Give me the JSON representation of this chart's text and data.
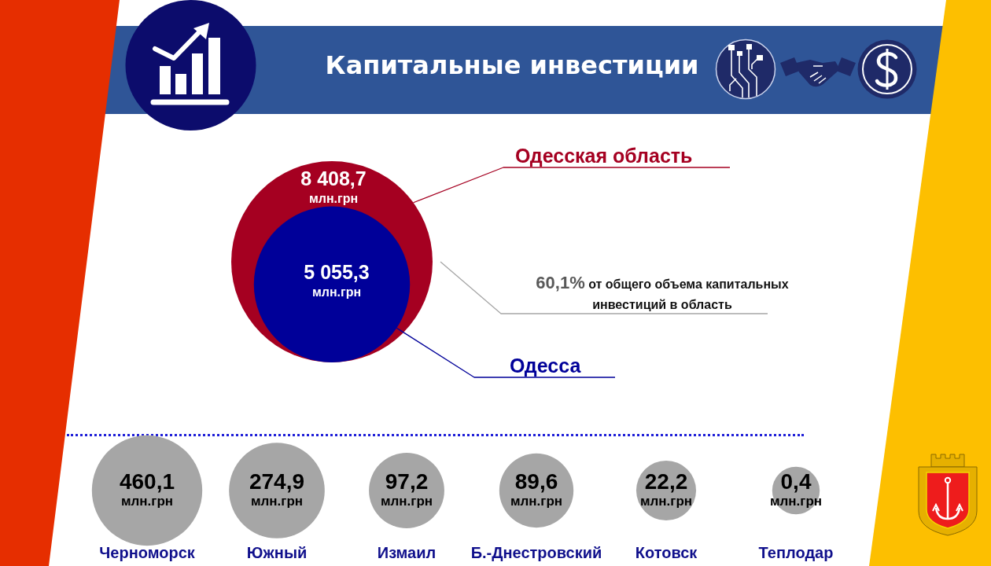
{
  "chart_data": [
    {
      "type": "other",
      "title": "Капитальные инвестиции",
      "categories": [
        "Одесская область",
        "Одесса"
      ],
      "values": [
        8408.7,
        5055.3
      ],
      "colors": [
        "#a50021",
        "#000099"
      ],
      "value_labels": [
        "8 408,7\nмлн.грн",
        "5 055,3\nмлн.грн"
      ],
      "annotations": [
        "60,1% от общего объема капитальных инвестиций в область"
      ]
    },
    {
      "type": "other",
      "categories": [
        "Черноморск",
        "Южный",
        "Измаил",
        "Б.-Днестровский",
        "Котовск",
        "Теплодар"
      ],
      "values": [
        460.1,
        274.9,
        97.2,
        89.6,
        22.2,
        0.4
      ],
      "color": "#a6a6a6",
      "value_labels": [
        "460,1\nмлн.грн",
        "274,9\nмлн.грн",
        "97,2\nмлн.грн",
        "89,6\nмлн.грн",
        "22,2\nмлн.грн",
        "0,4\nмлн.грн"
      ]
    }
  ]
}
